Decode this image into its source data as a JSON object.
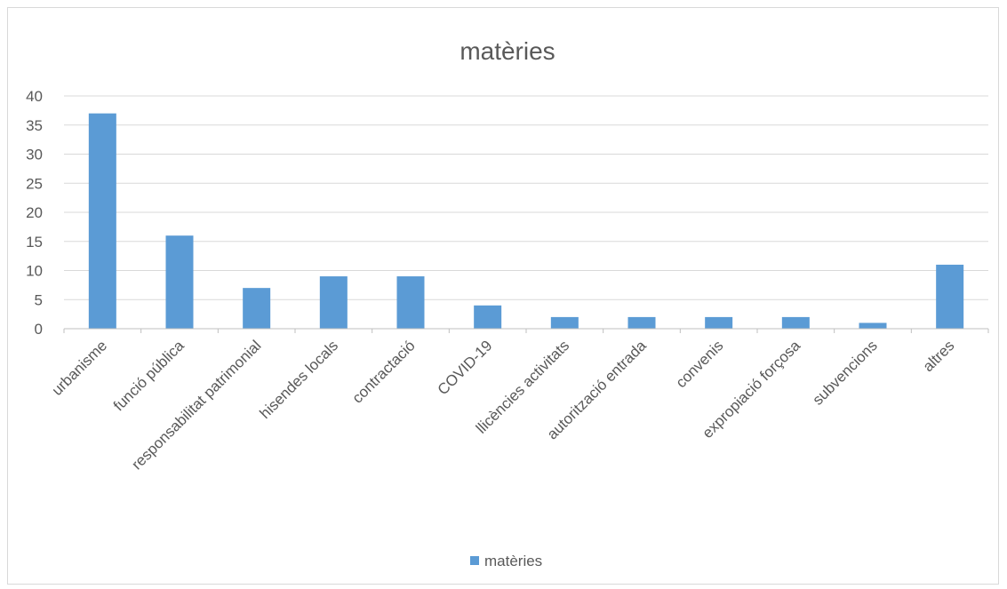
{
  "chart_data": {
    "type": "bar",
    "title": "matèries",
    "categories": [
      "urbanisme",
      "funció pública",
      "responsabilitat patrimonial",
      "hisendes locals",
      "contractació",
      "COVID-19",
      "llicències activitats",
      "autorització entrada",
      "convenis",
      "expropiació forçosa",
      "subvencions",
      "altres"
    ],
    "series": [
      {
        "name": "matèries",
        "values": [
          37,
          16,
          7,
          9,
          9,
          4,
          2,
          2,
          2,
          2,
          1,
          11
        ]
      }
    ],
    "ylim": [
      0,
      40
    ],
    "yticks": [
      "0",
      "5",
      "10",
      "15",
      "20",
      "25",
      "30",
      "35",
      "40"
    ],
    "grid": true,
    "legend_position": "bottom",
    "colors": {
      "bar": "#5b9bd5",
      "grid": "#d9d9d9",
      "axis": "#bfbfbf",
      "text": "#595959"
    }
  }
}
